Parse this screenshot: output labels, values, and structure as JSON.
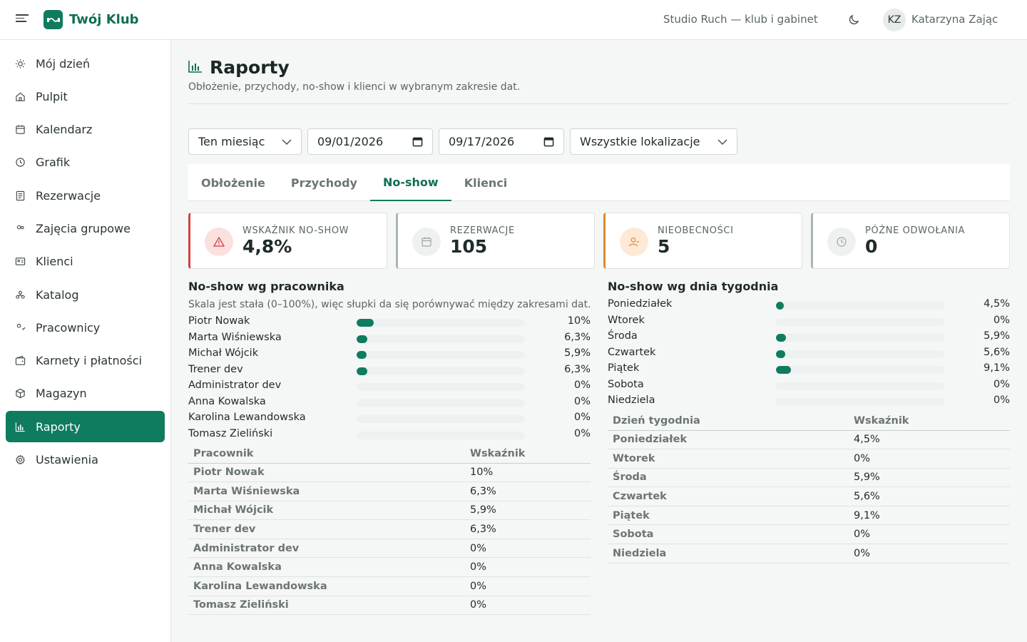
{
  "header": {
    "brand": "Twój Klub",
    "organization": "Studio Ruch — klub i gabinet",
    "user_initials": "KZ",
    "user_name": "Katarzyna Zając"
  },
  "sidebar": {
    "items": [
      {
        "label": "Mój dzień",
        "icon": "sun-icon"
      },
      {
        "label": "Pulpit",
        "icon": "home-icon"
      },
      {
        "label": "Kalendarz",
        "icon": "calendar-icon"
      },
      {
        "label": "Grafik",
        "icon": "clock-icon"
      },
      {
        "label": "Rezerwacje",
        "icon": "list-icon"
      },
      {
        "label": "Zajęcia grupowe",
        "icon": "users-icon"
      },
      {
        "label": "Klienci",
        "icon": "id-card-icon"
      },
      {
        "label": "Katalog",
        "icon": "catalog-icon"
      },
      {
        "label": "Pracownicy",
        "icon": "staff-icon"
      },
      {
        "label": "Karnety i płatności",
        "icon": "wallet-icon"
      },
      {
        "label": "Magazyn",
        "icon": "box-icon"
      },
      {
        "label": "Raporty",
        "icon": "chart-icon",
        "active": true
      },
      {
        "label": "Ustawienia",
        "icon": "gear-icon"
      }
    ]
  },
  "page": {
    "title": "Raporty",
    "subtitle": "Obłożenie, przychody, no-show i klienci w wybranym zakresie dat."
  },
  "filters": {
    "range": "Ten miesiąc",
    "date_from": "09/01/2026",
    "date_to": "09/17/2026",
    "location": "Wszystkie lokalizacje"
  },
  "tabs": [
    {
      "label": "Obłożenie"
    },
    {
      "label": "Przychody"
    },
    {
      "label": "No-show",
      "active": true
    },
    {
      "label": "Klienci"
    }
  ],
  "cards": [
    {
      "label": "WSKAŹNIK NO-SHOW",
      "value": "4,8%",
      "accent": "#d24141"
    },
    {
      "label": "REZERWACJE",
      "value": "105",
      "accent": "#a9b6b4"
    },
    {
      "label": "NIEOBECNOŚCI",
      "value": "5",
      "accent": "#e08a2c"
    },
    {
      "label": "PÓŹNE ODWOŁANIA",
      "value": "0",
      "accent": "#a9b6b4"
    }
  ],
  "by_employee": {
    "title": "No-show wg pracownika",
    "note": "Skala jest stała (0–100%), więc słupki da się porównywać między zakresami dat.",
    "col_name": "Pracownik",
    "col_rate": "Wskaźnik",
    "rows": [
      {
        "name": "Piotr Nowak",
        "rate": "10%",
        "value": 10
      },
      {
        "name": "Marta Wiśniewska",
        "rate": "6,3%",
        "value": 6.3
      },
      {
        "name": "Michał Wójcik",
        "rate": "5,9%",
        "value": 5.9
      },
      {
        "name": "Trener dev",
        "rate": "6,3%",
        "value": 6.3
      },
      {
        "name": "Administrator dev",
        "rate": "0%",
        "value": 0
      },
      {
        "name": "Anna Kowalska",
        "rate": "0%",
        "value": 0
      },
      {
        "name": "Karolina Lewandowska",
        "rate": "0%",
        "value": 0
      },
      {
        "name": "Tomasz Zieliński",
        "rate": "0%",
        "value": 0
      }
    ]
  },
  "by_weekday": {
    "title": "No-show wg dnia tygodnia",
    "col_name": "Dzień tygodnia",
    "col_rate": "Wskaźnik",
    "rows": [
      {
        "name": "Poniedziałek",
        "rate": "4,5%",
        "value": 4.5
      },
      {
        "name": "Wtorek",
        "rate": "0%",
        "value": 0
      },
      {
        "name": "Środa",
        "rate": "5,9%",
        "value": 5.9
      },
      {
        "name": "Czwartek",
        "rate": "5,6%",
        "value": 5.6
      },
      {
        "name": "Piątek",
        "rate": "9,1%",
        "value": 9.1
      },
      {
        "name": "Sobota",
        "rate": "0%",
        "value": 0
      },
      {
        "name": "Niedziela",
        "rate": "0%",
        "value": 0
      }
    ]
  },
  "colors": {
    "brand": "#0f7b5f",
    "danger": "#d24141",
    "warning": "#e08a2c"
  }
}
